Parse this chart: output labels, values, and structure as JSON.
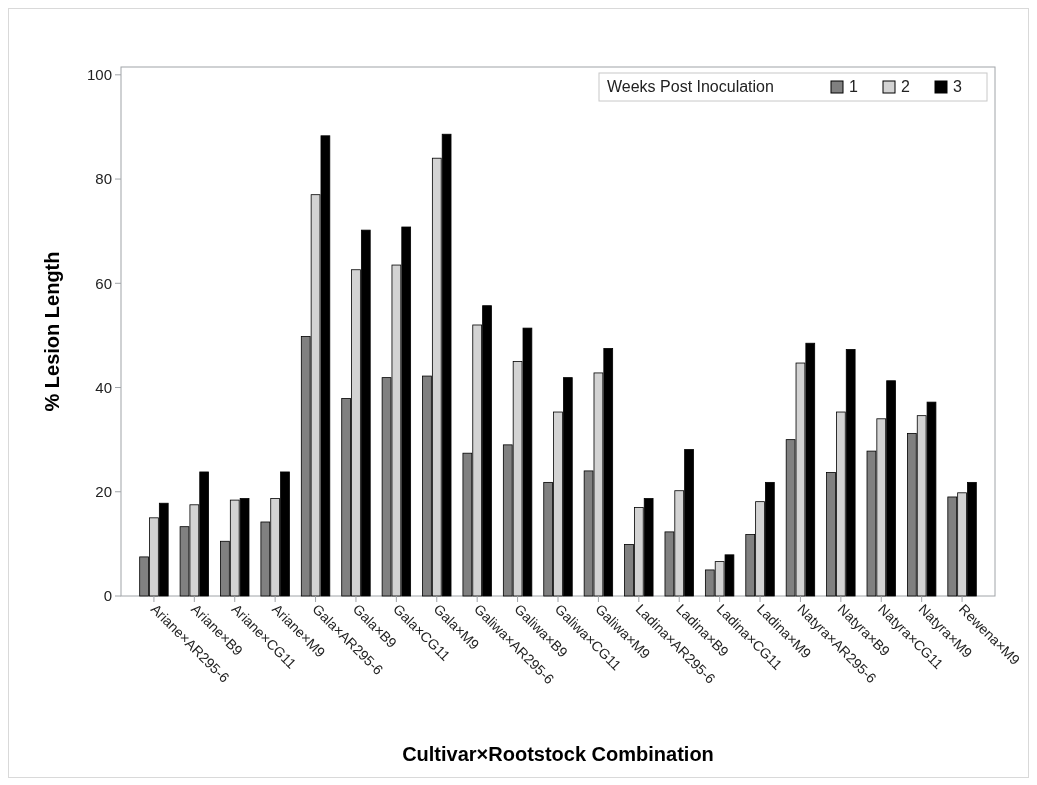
{
  "chart_data": {
    "type": "bar",
    "xlabel": "Cultivar×Rootstock Combination",
    "ylabel": "% Lesion Length",
    "legend_title": "Weeks Post Inoculation",
    "legend": "top right",
    "grid": false,
    "ylim": [
      0,
      101.5
    ],
    "yticks": [
      0,
      20,
      40,
      60,
      80,
      100
    ],
    "categories": [
      "Ariane×AR295-6",
      "Ariane×B9",
      "Ariane×CG11",
      "Ariane×M9",
      "Gala×AR295-6",
      "Gala×B9",
      "Gala×CG11",
      "Gala×M9",
      "Galiwa×AR295-6",
      "Galiwa×B9",
      "Galiwa×CG11",
      "Galiwa×M9",
      "Ladina×AR295-6",
      "Ladina×B9",
      "Ladina×CG11",
      "Ladina×M9",
      "Natyra×AR295-6",
      "Natyra×B9",
      "Natyra×CG11",
      "Natyra×M9",
      "Rewena×M9"
    ],
    "series": [
      {
        "name": "1",
        "color": "#808080",
        "values": [
          7.5,
          13.3,
          10.5,
          14.2,
          49.8,
          37.9,
          41.9,
          42.2,
          27.4,
          29,
          21.8,
          24,
          9.9,
          12.3,
          5,
          11.8,
          30,
          23.7,
          27.8,
          31.2,
          19
        ]
      },
      {
        "name": "2",
        "color": "#d3d3d3",
        "values": [
          15,
          17.5,
          18.4,
          18.7,
          77,
          62.6,
          63.5,
          84,
          52,
          45,
          35.3,
          42.8,
          17,
          20.2,
          6.6,
          18.1,
          44.7,
          35.3,
          34,
          34.6,
          19.8
        ]
      },
      {
        "name": "3",
        "color": "#000000",
        "values": [
          17.8,
          23.8,
          18.7,
          23.8,
          88.3,
          70.2,
          70.8,
          88.6,
          55.7,
          51.4,
          41.9,
          47.5,
          18.7,
          28.1,
          7.9,
          21.8,
          48.5,
          47.3,
          41.3,
          37.2,
          21.8
        ]
      }
    ]
  }
}
